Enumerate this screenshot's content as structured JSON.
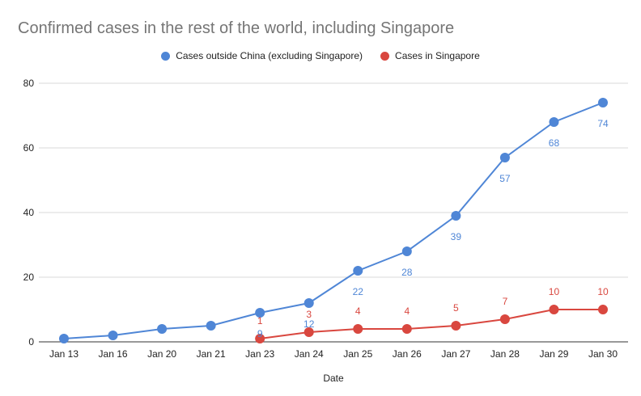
{
  "chart_data": {
    "type": "line",
    "title": "Confirmed cases in the rest of the world, including Singapore",
    "xlabel": "Date",
    "ylabel": "",
    "categories": [
      "Jan 13",
      "Jan 16",
      "Jan 20",
      "Jan 21",
      "Jan 23",
      "Jan 24",
      "Jan 25",
      "Jan 26",
      "Jan 27",
      "Jan 28",
      "Jan 29",
      "Jan 30"
    ],
    "ylim": [
      0,
      80
    ],
    "yticks": [
      "0",
      "20",
      "40",
      "60",
      "80"
    ],
    "grid": true,
    "legend_position": "top-center",
    "series": [
      {
        "name": "Cases outside China (excluding Singapore)",
        "color": "#4f86d6",
        "values": [
          1,
          2,
          4,
          5,
          9,
          12,
          22,
          28,
          39,
          57,
          68,
          74
        ],
        "labels": [
          null,
          null,
          null,
          null,
          "9",
          "12",
          "22",
          "28",
          "39",
          "57",
          "68",
          "74"
        ]
      },
      {
        "name": "Cases in Singapore",
        "color": "#d9473f",
        "values": [
          null,
          null,
          null,
          null,
          1,
          3,
          4,
          4,
          5,
          7,
          10,
          10
        ],
        "labels": [
          null,
          null,
          null,
          null,
          "1",
          "3",
          "4",
          "4",
          "5",
          "7",
          "10",
          "10"
        ]
      }
    ]
  }
}
